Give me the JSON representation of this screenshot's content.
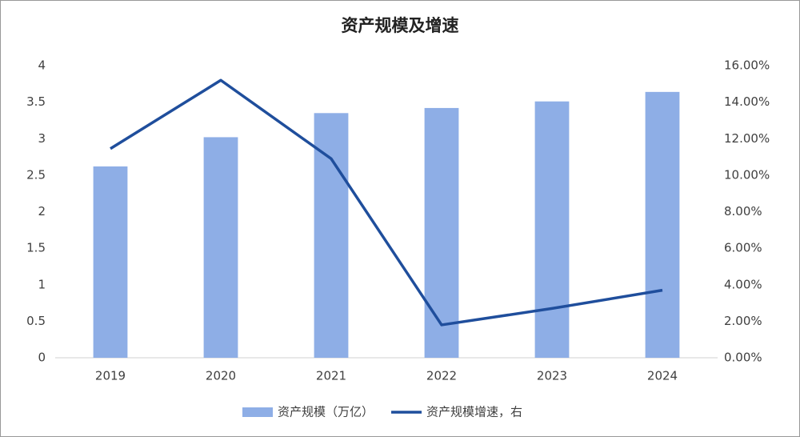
{
  "chart_data": {
    "type": "combo",
    "title": "资产规模及增速",
    "categories": [
      "2019",
      "2020",
      "2021",
      "2022",
      "2023",
      "2024"
    ],
    "series": [
      {
        "name": "资产规模（万亿）",
        "type": "bar",
        "color": "#8eaee6",
        "values": [
          2.62,
          3.02,
          3.35,
          3.42,
          3.51,
          3.64
        ]
      },
      {
        "name": "资产规模增速，右",
        "type": "line",
        "axis": "y2",
        "color": "#1f4e9c",
        "values": [
          11.45,
          15.2,
          10.9,
          1.8,
          2.7,
          3.7
        ]
      }
    ],
    "ylim": [
      0,
      4
    ],
    "yticks": [
      0,
      0.5,
      1,
      1.5,
      2,
      2.5,
      3,
      3.5,
      4
    ],
    "y2lim": [
      0,
      16
    ],
    "y2ticks": [
      {
        "value": 0,
        "label": "0.00%"
      },
      {
        "value": 2,
        "label": "2.00%"
      },
      {
        "value": 4,
        "label": "4.00%"
      },
      {
        "value": 6,
        "label": "6.00%"
      },
      {
        "value": 8,
        "label": "8.00%"
      },
      {
        "value": 10,
        "label": "10.00%"
      },
      {
        "value": 12,
        "label": "12.00%"
      },
      {
        "value": 14,
        "label": "14.00%"
      },
      {
        "value": 16,
        "label": "16.00%"
      }
    ],
    "grid": false,
    "legend": "bottom"
  }
}
